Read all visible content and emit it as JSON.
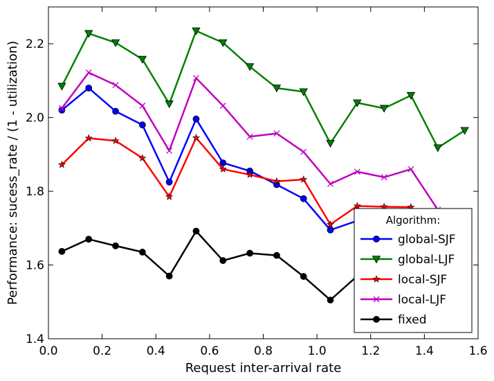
{
  "chart_data": {
    "type": "line",
    "title": "",
    "xlabel": "Request inter-arrival rate",
    "ylabel": "Performance: sucess_rate / (1 - utilization)",
    "xlim": [
      0.0,
      1.6
    ],
    "ylim": [
      1.4,
      2.3
    ],
    "xticks": [
      "0.0",
      "0.2",
      "0.4",
      "0.6",
      "0.8",
      "1.0",
      "1.2",
      "1.4",
      "1.6"
    ],
    "yticks": [
      "1.4",
      "1.6",
      "1.8",
      "2.0",
      "2.2"
    ],
    "grid": false,
    "legend": {
      "title": "Algorithm:",
      "placement": "lower-right"
    },
    "series": [
      {
        "name": "global-SJF",
        "color": "#0000ff",
        "marker": "circle",
        "x": [
          0.05,
          0.15,
          0.25,
          0.35,
          0.45,
          0.55,
          0.65,
          0.75,
          0.85,
          0.95,
          1.05,
          1.15
        ],
        "y": [
          2.02,
          2.08,
          2.017,
          1.98,
          1.825,
          1.996,
          1.877,
          1.855,
          1.818,
          1.78,
          1.695,
          1.72
        ]
      },
      {
        "name": "global-LJF",
        "color": "#008000",
        "marker": "triangle-down",
        "x": [
          0.05,
          0.15,
          0.25,
          0.35,
          0.45,
          0.55,
          0.65,
          0.75,
          0.85,
          0.95,
          1.05,
          1.15,
          1.25,
          1.35,
          1.45,
          1.55
        ],
        "y": [
          2.085,
          2.228,
          2.203,
          2.158,
          2.037,
          2.235,
          2.203,
          2.138,
          2.08,
          2.07,
          1.93,
          2.04,
          2.025,
          2.06,
          1.918,
          1.965
        ]
      },
      {
        "name": "local-SJF",
        "color": "#ff0000",
        "marker": "star",
        "x": [
          0.05,
          0.15,
          0.25,
          0.35,
          0.45,
          0.55,
          0.65,
          0.75,
          0.85,
          0.95,
          1.05,
          1.15,
          1.25,
          1.35
        ],
        "y": [
          1.872,
          1.944,
          1.937,
          1.89,
          1.785,
          1.945,
          1.86,
          1.845,
          1.827,
          1.832,
          1.71,
          1.76,
          1.758,
          1.757
        ]
      },
      {
        "name": "local-LJF",
        "color": "#bf00bf",
        "marker": "x",
        "x": [
          0.05,
          0.15,
          0.25,
          0.35,
          0.45,
          0.55,
          0.65,
          0.75,
          0.85,
          0.95,
          1.05,
          1.15,
          1.25,
          1.35,
          1.45
        ],
        "y": [
          2.025,
          2.122,
          2.088,
          2.032,
          1.91,
          2.107,
          2.032,
          1.948,
          1.957,
          1.907,
          1.82,
          1.853,
          1.838,
          1.86,
          1.75
        ]
      },
      {
        "name": "fixed",
        "color": "#000000",
        "marker": "circle",
        "x": [
          0.05,
          0.15,
          0.25,
          0.35,
          0.45,
          0.55,
          0.65,
          0.75,
          0.85,
          0.95,
          1.05,
          1.15
        ],
        "y": [
          1.637,
          1.67,
          1.652,
          1.635,
          1.57,
          1.692,
          1.612,
          1.632,
          1.626,
          1.569,
          1.505,
          1.57
        ]
      }
    ]
  }
}
